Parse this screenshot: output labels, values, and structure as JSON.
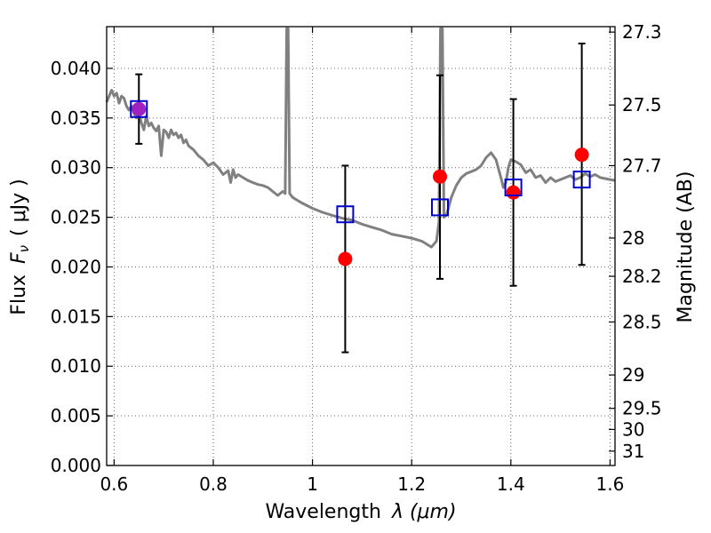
{
  "chart_data": {
    "type": "scatter",
    "title": "",
    "xlabel": "Wavelength",
    "xlabel_math": "λ (μm)",
    "ylabel": "Flux",
    "ylabel_math": "F",
    "ylabel_math_sub": "ν",
    "ylabel_unit": "( μJy )",
    "y2label": "Magnitude (AB)",
    "xlim": [
      0.585,
      1.61
    ],
    "ylim": [
      0.0,
      0.0442
    ],
    "grid": true,
    "x_ticks": [
      {
        "value": 0.6,
        "label": "0.6"
      },
      {
        "value": 0.8,
        "label": "0.8"
      },
      {
        "value": 1.0,
        "label": "1"
      },
      {
        "value": 1.2,
        "label": "1.2"
      },
      {
        "value": 1.4,
        "label": "1.4"
      },
      {
        "value": 1.6,
        "label": "1.6"
      }
    ],
    "y_ticks": [
      {
        "value": 0.0,
        "label": "0.000"
      },
      {
        "value": 0.005,
        "label": "0.005"
      },
      {
        "value": 0.01,
        "label": "0.010"
      },
      {
        "value": 0.015,
        "label": "0.015"
      },
      {
        "value": 0.02,
        "label": "0.020"
      },
      {
        "value": 0.025,
        "label": "0.025"
      },
      {
        "value": 0.03,
        "label": "0.030"
      },
      {
        "value": 0.035,
        "label": "0.035"
      },
      {
        "value": 0.04,
        "label": "0.040"
      }
    ],
    "mag_ticks": [
      {
        "mag": 27.3,
        "label": "27.3"
      },
      {
        "mag": 27.5,
        "label": "27.5"
      },
      {
        "mag": 27.7,
        "label": "27.7"
      },
      {
        "mag": 28.0,
        "label": "28"
      },
      {
        "mag": 28.2,
        "label": "28.2"
      },
      {
        "mag": 28.5,
        "label": "28.5"
      },
      {
        "mag": 29.0,
        "label": "29"
      },
      {
        "mag": 29.5,
        "label": "29.5"
      },
      {
        "mag": 30.0,
        "label": "30"
      },
      {
        "mag": 31.0,
        "label": "31"
      }
    ],
    "series": [
      {
        "kind": "model-spectrum",
        "color": "#808080",
        "x": [
          0.585,
          0.595,
          0.6,
          0.605,
          0.61,
          0.615,
          0.62,
          0.625,
          0.63,
          0.635,
          0.64,
          0.645,
          0.65,
          0.655,
          0.66,
          0.665,
          0.67,
          0.675,
          0.68,
          0.685,
          0.69,
          0.695,
          0.7,
          0.705,
          0.71,
          0.715,
          0.72,
          0.725,
          0.73,
          0.735,
          0.74,
          0.745,
          0.75,
          0.76,
          0.77,
          0.78,
          0.79,
          0.8,
          0.81,
          0.82,
          0.83,
          0.835,
          0.84,
          0.845,
          0.85,
          0.86,
          0.87,
          0.88,
          0.89,
          0.9,
          0.91,
          0.92,
          0.93,
          0.94,
          0.945,
          0.948,
          0.951,
          0.954,
          0.96,
          0.97,
          0.98,
          1.0,
          1.02,
          1.04,
          1.06,
          1.08,
          1.1,
          1.12,
          1.14,
          1.16,
          1.18,
          1.2,
          1.22,
          1.24,
          1.25,
          1.255,
          1.258,
          1.26,
          1.262,
          1.265,
          1.27,
          1.28,
          1.29,
          1.3,
          1.31,
          1.32,
          1.33,
          1.34,
          1.35,
          1.36,
          1.37,
          1.38,
          1.385,
          1.39,
          1.395,
          1.4,
          1.41,
          1.42,
          1.43,
          1.44,
          1.45,
          1.46,
          1.47,
          1.48,
          1.49,
          1.5,
          1.51,
          1.52,
          1.53,
          1.54,
          1.55,
          1.56,
          1.57,
          1.58,
          1.59,
          1.6,
          1.61
        ],
        "y": [
          0.0366,
          0.0378,
          0.0372,
          0.0375,
          0.0365,
          0.0372,
          0.037,
          0.0362,
          0.0358,
          0.0362,
          0.0355,
          0.035,
          0.0355,
          0.0345,
          0.0338,
          0.0352,
          0.0342,
          0.0345,
          0.034,
          0.0337,
          0.0342,
          0.0312,
          0.0338,
          0.0336,
          0.033,
          0.0338,
          0.0333,
          0.0335,
          0.033,
          0.0333,
          0.0325,
          0.0328,
          0.0322,
          0.0318,
          0.0312,
          0.0308,
          0.0302,
          0.0305,
          0.03,
          0.0293,
          0.0297,
          0.0285,
          0.0298,
          0.029,
          0.0293,
          0.029,
          0.0287,
          0.0285,
          0.0283,
          0.0282,
          0.028,
          0.0276,
          0.0272,
          0.0276,
          0.0274,
          0.044,
          0.044,
          0.0274,
          0.027,
          0.0267,
          0.0264,
          0.0259,
          0.0255,
          0.0252,
          0.0249,
          0.0247,
          0.0243,
          0.024,
          0.0237,
          0.0233,
          0.0231,
          0.0229,
          0.0226,
          0.022,
          0.0226,
          0.0245,
          0.044,
          0.044,
          0.044,
          0.025,
          0.0252,
          0.027,
          0.0282,
          0.029,
          0.0294,
          0.0296,
          0.0298,
          0.0302,
          0.031,
          0.0315,
          0.0308,
          0.029,
          0.028,
          0.0285,
          0.03,
          0.0308,
          0.0306,
          0.0303,
          0.0295,
          0.0298,
          0.029,
          0.0292,
          0.0285,
          0.029,
          0.0286,
          0.0288,
          0.029,
          0.0292,
          0.0288,
          0.029,
          0.0294,
          0.0291,
          0.0293,
          0.029,
          0.0289,
          0.0288,
          0.0287
        ]
      },
      {
        "kind": "observed",
        "color": "#ff0000",
        "x": [
          0.65,
          1.066,
          1.257,
          1.405,
          1.543
        ],
        "y": [
          0.0359,
          0.0208,
          0.0291,
          0.0275,
          0.0313
        ],
        "err_low": [
          0.0324,
          0.0114,
          0.0188,
          0.0181,
          0.0202
        ],
        "err_high": [
          0.0394,
          0.0302,
          0.0393,
          0.0369,
          0.0425
        ]
      },
      {
        "kind": "model-photometry",
        "color": "#0000cc",
        "x": [
          0.65,
          1.066,
          1.257,
          1.405,
          1.543
        ],
        "y": [
          0.0359,
          0.0253,
          0.026,
          0.028,
          0.0288
        ]
      }
    ]
  }
}
